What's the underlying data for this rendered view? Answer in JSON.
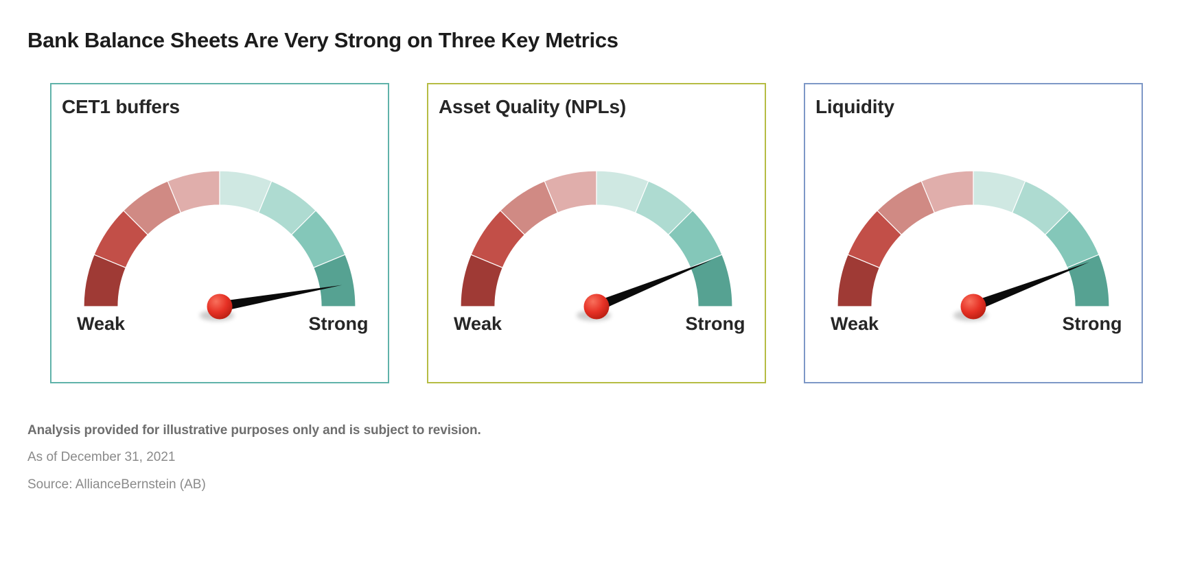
{
  "page": {
    "title": "Bank Balance Sheets Are Very Strong on Three Key Metrics"
  },
  "chart_data": [
    {
      "type": "gauge",
      "title": "CET1 buffers",
      "scale_min_label": "Weak",
      "scale_max_label": "Strong",
      "needle_angle_deg": 10,
      "value_pct_of_scale": 94,
      "border_color": "#5fb2a9"
    },
    {
      "type": "gauge",
      "title": "Asset Quality (NPLs)",
      "scale_min_label": "Weak",
      "scale_max_label": "Strong",
      "needle_angle_deg": 22,
      "value_pct_of_scale": 88,
      "border_color": "#b5bc43"
    },
    {
      "type": "gauge",
      "title": "Liquidity",
      "scale_min_label": "Weak",
      "scale_max_label": "Strong",
      "needle_angle_deg": 21,
      "value_pct_of_scale": 88,
      "border_color": "#7d97c6"
    }
  ],
  "gauge_style": {
    "arc_span_deg": 180,
    "segment_count": 8,
    "segment_colors": [
      "#9f3a35",
      "#c24f48",
      "#d08a84",
      "#e0aeab",
      "#cfe8e2",
      "#aedbd1",
      "#84c7b9",
      "#56a292"
    ],
    "segment_divider_color": "#ffffff",
    "needle_color": "#0b0b0b",
    "hub_color": "#e63125",
    "hub_highlight": "#f8705c",
    "hub_shadow": "#b51d10"
  },
  "footer": {
    "disclaimer": "Analysis provided for illustrative purposes only and is subject to revision.",
    "as_of": "As of December 31, 2021",
    "source": "Source: AllianceBernstein (AB)"
  }
}
